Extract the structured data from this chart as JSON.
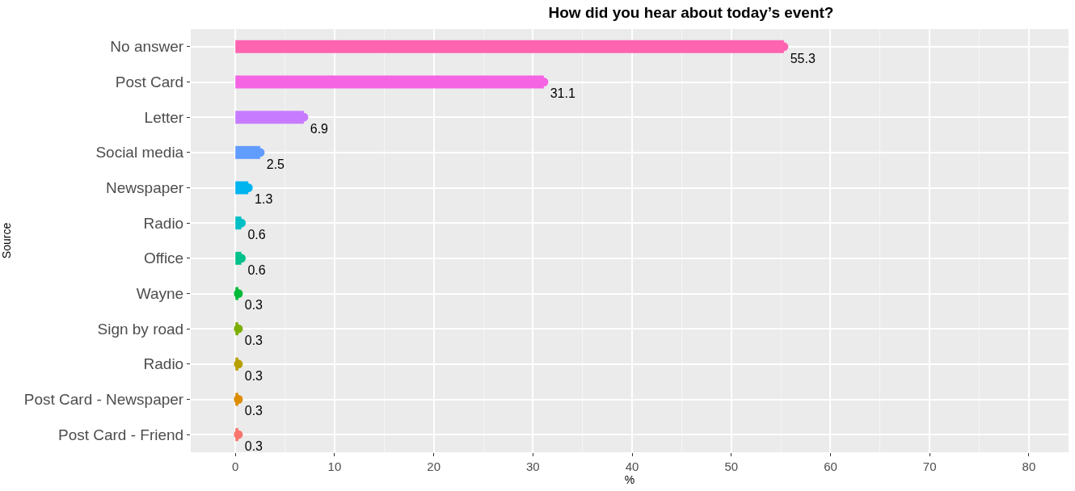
{
  "chart_data": {
    "type": "lollipop",
    "orientation": "horizontal",
    "title": "How did you hear about today’s event?",
    "xlabel": "%",
    "ylabel": "Source",
    "categories": [
      "No answer",
      "Post Card",
      "Letter",
      "Social media",
      "Newspaper",
      "Radio",
      "Office",
      "Wayne",
      "Sign by road",
      "Radio",
      "Post Card - Newspaper",
      "Post Card - Friend"
    ],
    "values": [
      55.3,
      31.1,
      6.9,
      2.5,
      1.3,
      0.6,
      0.6,
      0.3,
      0.3,
      0.3,
      0.3,
      0.3
    ],
    "colors": [
      "#ff64b0",
      "#f564e3",
      "#c77cff",
      "#619cff",
      "#00b4f0",
      "#00bfc4",
      "#00c08b",
      "#00ba38",
      "#7cae00",
      "#b79f00",
      "#de8c00",
      "#f8766d"
    ],
    "xlim": [
      -4.5,
      84
    ],
    "xticks": [
      0,
      10,
      20,
      30,
      40,
      50,
      60,
      70,
      80
    ],
    "data_labels": true,
    "grid": true,
    "marker": "circle"
  }
}
